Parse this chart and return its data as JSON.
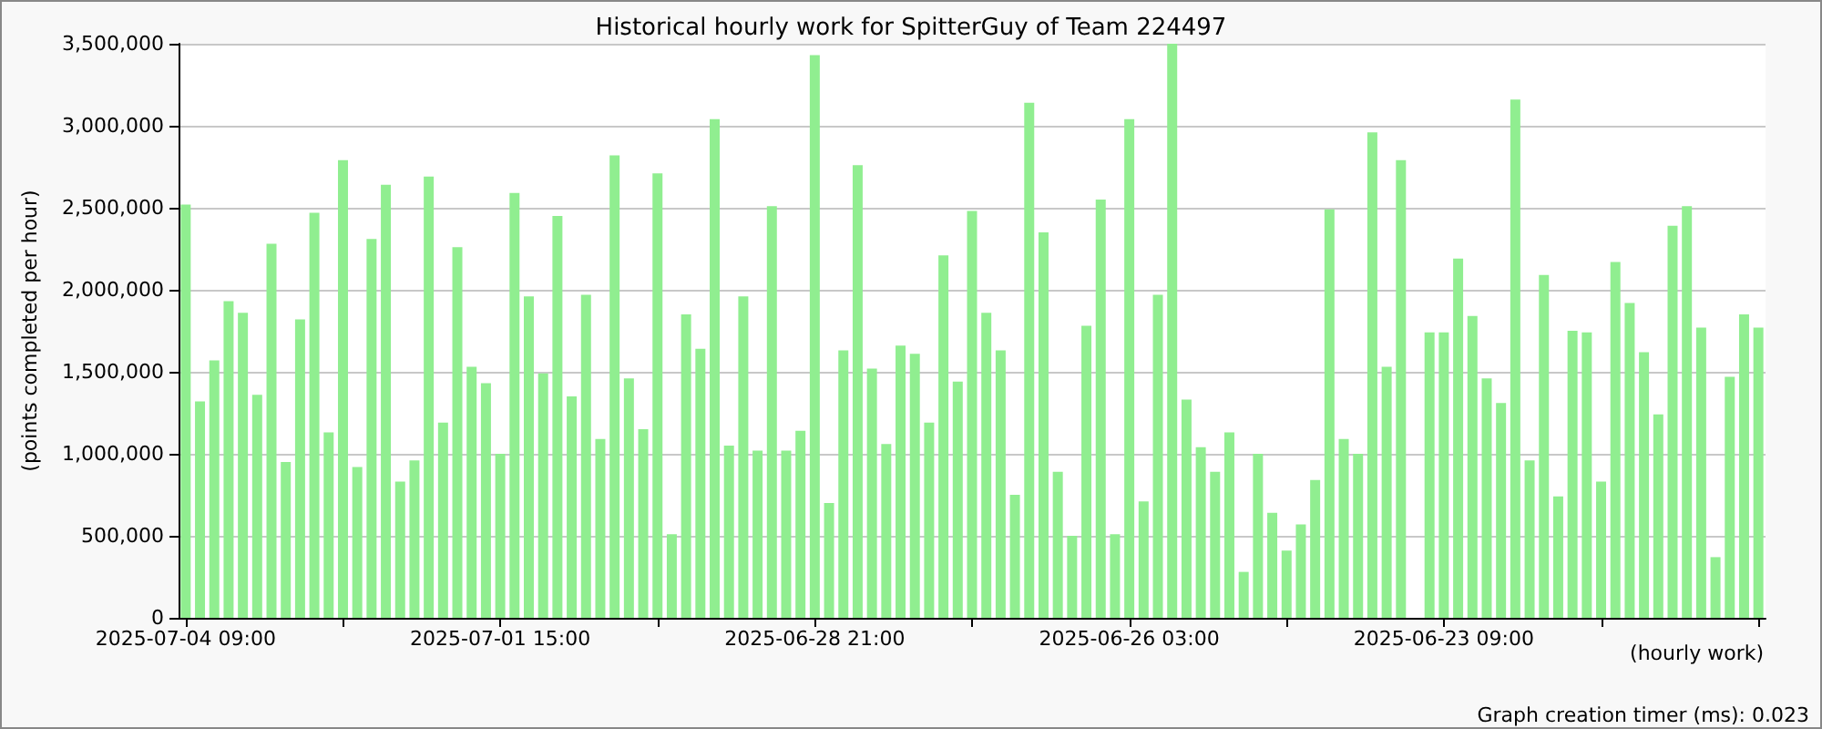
{
  "chart_data": {
    "type": "bar",
    "title": "Historical hourly work for SpitterGuy of Team 224497",
    "xlabel": "(hourly work)",
    "ylabel": "(points completed per hour)",
    "annotations": [
      "Graph creation timer (ms): 0.023"
    ],
    "categories": [
      "2025-07-04 09:00",
      null,
      null,
      null,
      null,
      null,
      null,
      null,
      null,
      null,
      null,
      null,
      null,
      null,
      null,
      null,
      null,
      null,
      null,
      null,
      null,
      null,
      "2025-07-01 15:00",
      null,
      null,
      null,
      null,
      null,
      null,
      null,
      null,
      null,
      null,
      null,
      null,
      null,
      null,
      null,
      null,
      null,
      null,
      null,
      null,
      null,
      "2025-06-28 21:00",
      null,
      null,
      null,
      null,
      null,
      null,
      null,
      null,
      null,
      null,
      null,
      null,
      null,
      null,
      null,
      null,
      null,
      null,
      null,
      null,
      null,
      "2025-06-26 03:00",
      null,
      null,
      null,
      null,
      null,
      null,
      null,
      null,
      null,
      null,
      null,
      null,
      null,
      null,
      null,
      null,
      null,
      null,
      null,
      null,
      null,
      "2025-06-23 09:00",
      null,
      null,
      null,
      null,
      null,
      null,
      null,
      null,
      null,
      null,
      null,
      null,
      null,
      null,
      null,
      null,
      null,
      null,
      null,
      null,
      null,
      null
    ],
    "values": [
      2520000,
      1320000,
      1570000,
      1930000,
      1860000,
      1360000,
      2280000,
      950000,
      1820000,
      2470000,
      1130000,
      2790000,
      920000,
      2310000,
      2640000,
      830000,
      960000,
      2690000,
      1190000,
      2260000,
      1530000,
      1430000,
      1000000,
      2590000,
      1960000,
      1490000,
      2450000,
      1350000,
      1970000,
      1090000,
      2820000,
      1460000,
      1150000,
      2710000,
      510000,
      1850000,
      1640000,
      3040000,
      1050000,
      1960000,
      1020000,
      2510000,
      1020000,
      1140000,
      3430000,
      700000,
      1630000,
      2760000,
      1520000,
      1060000,
      1660000,
      1610000,
      1190000,
      2210000,
      1440000,
      2480000,
      1860000,
      1630000,
      750000,
      3140000,
      2350000,
      890000,
      500000,
      1780000,
      2550000,
      510000,
      3040000,
      710000,
      1970000,
      3500000,
      1330000,
      1040000,
      890000,
      1130000,
      280000,
      1000000,
      640000,
      410000,
      570000,
      840000,
      2490000,
      1090000,
      1000000,
      2960000,
      1530000,
      2790000,
      0,
      1740000,
      1740000,
      2190000,
      1840000,
      1460000,
      1310000,
      3160000,
      960000,
      2090000,
      740000,
      1750000,
      1740000,
      830000,
      2170000,
      1920000,
      1620000,
      1240000,
      2390000,
      2510000,
      1770000,
      370000,
      1470000,
      1850000,
      1770000
    ],
    "color": "#90ee90",
    "ylim": [
      0,
      3500000
    ],
    "yticks": [
      0,
      {
        "value": 500000,
        "label": "500,000"
      },
      {
        "value": 1000000,
        "label": "1,000,000"
      },
      {
        "value": 1500000,
        "label": "1,500,000"
      },
      {
        "value": 2000000,
        "label": "2,000,000"
      },
      {
        "value": 2500000,
        "label": "2,500,000"
      },
      {
        "value": 3000000,
        "label": "3,000,000"
      },
      {
        "value": 3500000,
        "label": "3,500,000"
      }
    ],
    "grid": "y"
  }
}
